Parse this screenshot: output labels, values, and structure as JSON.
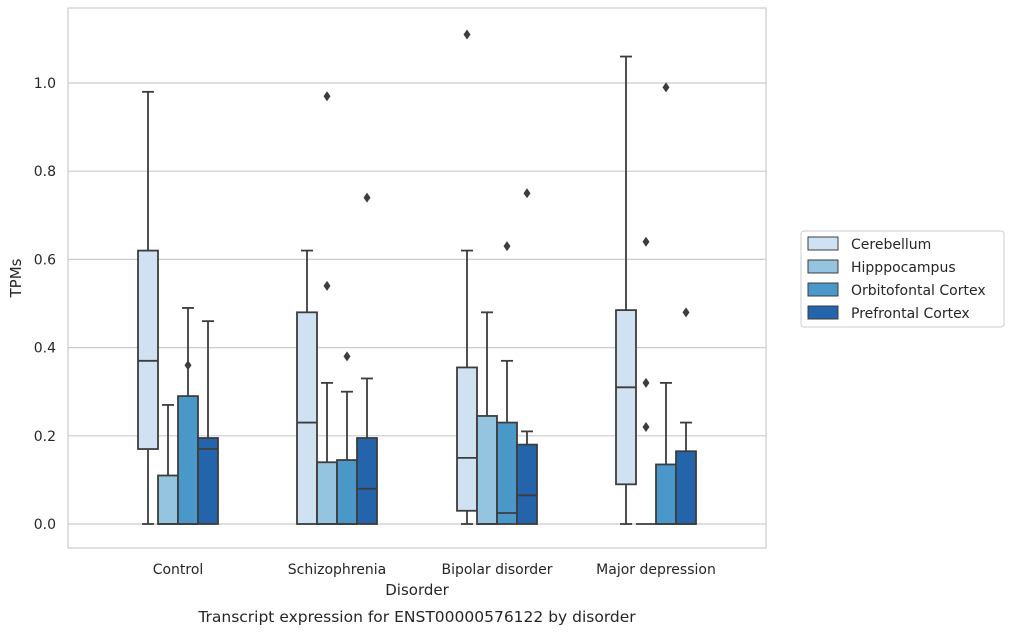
{
  "chart_data": {
    "type": "box",
    "xlabel": "Disorder",
    "ylabel": "TPMs",
    "caption": "Transcript expression for ENST00000576122 by disorder",
    "ylim": [
      -0.055,
      1.17
    ],
    "yticks": [
      "0.0",
      "0.2",
      "0.4",
      "0.6",
      "0.8",
      "1.0"
    ],
    "ytick_values": [
      0.0,
      0.2,
      0.4,
      0.6,
      0.8,
      1.0
    ],
    "grid": "horizontal",
    "legend_position": "right",
    "categories": [
      "Control",
      "Schizophrenia",
      "Bipolar disorder",
      "Major depression"
    ],
    "series": [
      {
        "name": "Cerebellum",
        "color": "#d0e1f2",
        "boxes": [
          {
            "whislo": 0.0,
            "q1": 0.17,
            "med": 0.37,
            "q3": 0.62,
            "whishi": 0.98,
            "fliers": []
          },
          {
            "whislo": 0.0,
            "q1": 0.0,
            "med": 0.23,
            "q3": 0.48,
            "whishi": 0.62,
            "fliers": []
          },
          {
            "whislo": 0.0,
            "q1": 0.03,
            "med": 0.15,
            "q3": 0.355,
            "whishi": 0.62,
            "fliers": [
              1.11
            ]
          },
          {
            "whislo": 0.0,
            "q1": 0.09,
            "med": 0.31,
            "q3": 0.485,
            "whishi": 1.06,
            "fliers": []
          }
        ]
      },
      {
        "name": "Hipppocampus",
        "color": "#94c4df",
        "boxes": [
          {
            "whislo": 0.0,
            "q1": 0.0,
            "med": 0.0,
            "q3": 0.11,
            "whishi": 0.27,
            "fliers": []
          },
          {
            "whislo": 0.0,
            "q1": 0.0,
            "med": 0.0,
            "q3": 0.14,
            "whishi": 0.32,
            "fliers": [
              0.97,
              0.54
            ]
          },
          {
            "whislo": 0.0,
            "q1": 0.0,
            "med": 0.0,
            "q3": 0.245,
            "whishi": 0.48,
            "fliers": []
          },
          {
            "whislo": 0.0,
            "q1": 0.0,
            "med": 0.0,
            "q3": 0.0,
            "whishi": 0.0,
            "fliers": [
              0.64,
              0.32,
              0.22
            ]
          }
        ]
      },
      {
        "name": "Orbitofontal Cortex",
        "color": "#4a98c9",
        "boxes": [
          {
            "whislo": 0.0,
            "q1": 0.0,
            "med": 0.0,
            "q3": 0.29,
            "whishi": 0.49,
            "fliers": [
              0.36
            ]
          },
          {
            "whislo": 0.0,
            "q1": 0.0,
            "med": 0.0,
            "q3": 0.145,
            "whishi": 0.3,
            "fliers": [
              0.38
            ]
          },
          {
            "whislo": 0.0,
            "q1": 0.0,
            "med": 0.025,
            "q3": 0.23,
            "whishi": 0.37,
            "fliers": [
              0.63
            ]
          },
          {
            "whislo": 0.0,
            "q1": 0.0,
            "med": 0.0,
            "q3": 0.135,
            "whishi": 0.32,
            "fliers": [
              0.99
            ]
          }
        ]
      },
      {
        "name": "Prefrontal Cortex",
        "color": "#2464ab",
        "boxes": [
          {
            "whislo": 0.0,
            "q1": 0.0,
            "med": 0.17,
            "q3": 0.195,
            "whishi": 0.46,
            "fliers": []
          },
          {
            "whislo": 0.0,
            "q1": 0.0,
            "med": 0.08,
            "q3": 0.195,
            "whishi": 0.33,
            "fliers": [
              0.74
            ]
          },
          {
            "whislo": 0.0,
            "q1": 0.0,
            "med": 0.065,
            "q3": 0.18,
            "whishi": 0.21,
            "fliers": [
              0.75
            ]
          },
          {
            "whislo": 0.0,
            "q1": 0.0,
            "med": 0.0,
            "q3": 0.165,
            "whishi": 0.23,
            "fliers": [
              0.48
            ]
          }
        ]
      }
    ]
  }
}
